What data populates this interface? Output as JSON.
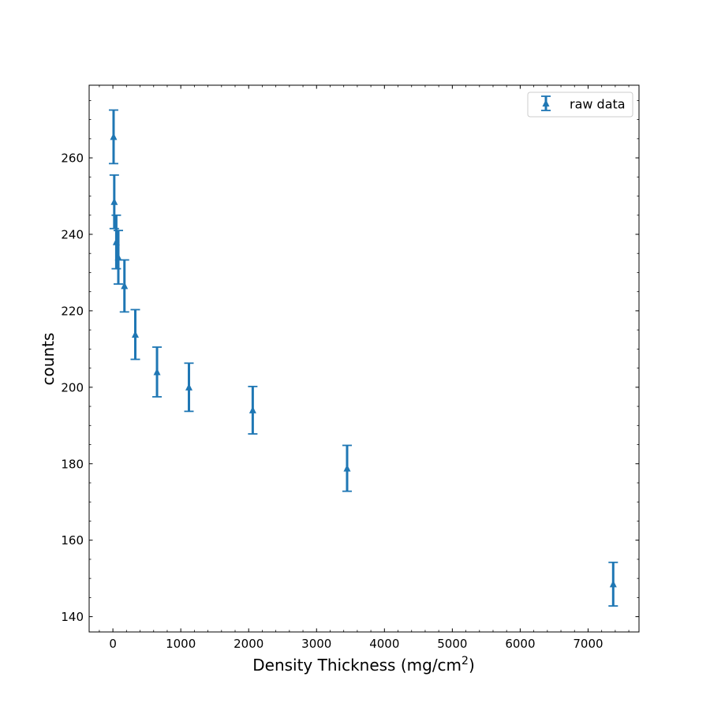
{
  "chart_data": {
    "type": "scatter",
    "title": "",
    "xlabel": "Density Thickness (mg/cm",
    "xlabel_sup": "2",
    "xlabel_suffix": ")",
    "ylabel": "counts",
    "xlim": [
      -350,
      7750
    ],
    "ylim": [
      136,
      279
    ],
    "x_ticks": [
      0,
      1000,
      2000,
      3000,
      4000,
      5000,
      6000,
      7000
    ],
    "y_ticks": [
      140,
      160,
      180,
      200,
      220,
      240,
      260
    ],
    "grid": false,
    "legend_position": "top-right",
    "series": [
      {
        "name": "raw data",
        "color": "#1f77b4",
        "marker": "triangle-up",
        "points": [
          {
            "x": 10,
            "y": 265.5,
            "err": 7
          },
          {
            "x": 20,
            "y": 248.5,
            "err": 7
          },
          {
            "x": 50,
            "y": 238,
            "err": 7
          },
          {
            "x": 80,
            "y": 234,
            "err": 7
          },
          {
            "x": 170,
            "y": 226.5,
            "err": 6.8
          },
          {
            "x": 330,
            "y": 213.8,
            "err": 6.5
          },
          {
            "x": 650,
            "y": 204,
            "err": 6.5
          },
          {
            "x": 1120,
            "y": 200,
            "err": 6.3
          },
          {
            "x": 2060,
            "y": 194,
            "err": 6.2
          },
          {
            "x": 3450,
            "y": 178.8,
            "err": 6
          },
          {
            "x": 7370,
            "y": 148.5,
            "err": 5.7
          }
        ]
      }
    ]
  }
}
